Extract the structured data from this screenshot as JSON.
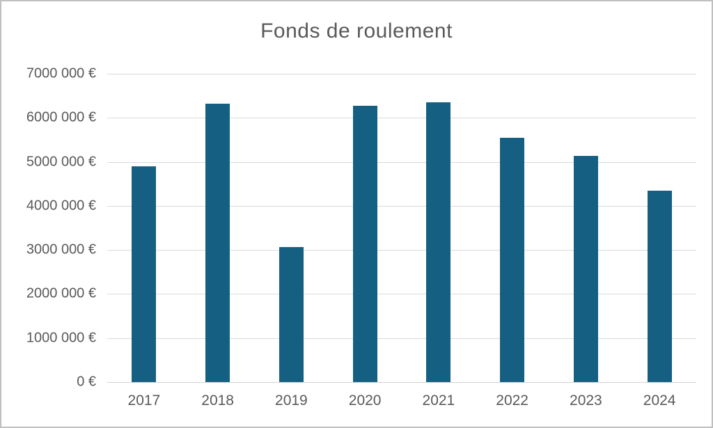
{
  "window": {
    "background_color": "#FFFFFF",
    "border_color": "#BFBFBF"
  },
  "chart_data": {
    "type": "bar",
    "title": "Fonds de roulement",
    "categories": [
      "2017",
      "2018",
      "2019",
      "2020",
      "2021",
      "2022",
      "2023",
      "2024"
    ],
    "values": [
      4900000,
      6320000,
      3070000,
      6270000,
      6350000,
      5550000,
      5130000,
      4350000
    ],
    "series_name": "Fonds de roulement",
    "xlabel": "",
    "ylabel": "",
    "ylim": [
      0,
      7000000
    ],
    "y_tick_step": 1000000,
    "y_ticks": [
      {
        "value": 0,
        "label": "0 €"
      },
      {
        "value": 1000000,
        "label": "1000 000 €"
      },
      {
        "value": 2000000,
        "label": "2000 000 €"
      },
      {
        "value": 3000000,
        "label": "3000 000 €"
      },
      {
        "value": 4000000,
        "label": "4000 000 €"
      },
      {
        "value": 5000000,
        "label": "5000 000 €"
      },
      {
        "value": 6000000,
        "label": "6000 000 €"
      },
      {
        "value": 7000000,
        "label": "7000 000 €"
      }
    ],
    "grid": true,
    "legend_position": "none",
    "bar_color": "#156082",
    "title_color": "#595959",
    "axis_label_color": "#595959",
    "gridline_color": "#D9D9D9",
    "baseline_color": "#D2D2D2"
  }
}
